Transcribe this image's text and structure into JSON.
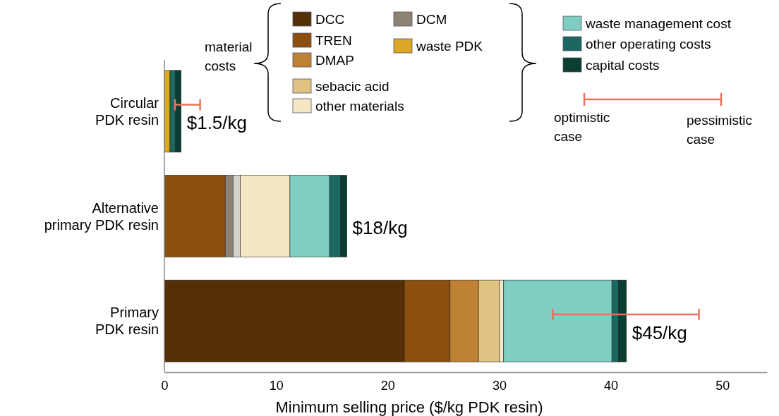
{
  "chart_data": {
    "type": "bar",
    "orientation": "horizontal",
    "stacked": true,
    "xlabel": "Minimum selling price ($/kg PDK resin)",
    "categories": [
      "Circular\nPDK resin",
      "Alternative\nprimary PDK resin",
      "Primary\nPDK resin"
    ],
    "series": [
      {
        "name": "DCC",
        "color": "#552f06",
        "values": [
          0,
          0,
          21.5
        ]
      },
      {
        "name": "TREN",
        "color": "#8b4f0e",
        "values": [
          0,
          5.45,
          4.1
        ]
      },
      {
        "name": "DMAP",
        "color": "#bf8133",
        "values": [
          0,
          0,
          2.55
        ]
      },
      {
        "name": "DCM",
        "color": "#8c8375",
        "values": [
          0,
          0.7,
          0
        ]
      },
      {
        "color": "#d6d3ce",
        "values": [
          0,
          0.65,
          0
        ]
      },
      {
        "name": "sebacic acid",
        "color": "#e0c382",
        "values": [
          0,
          0,
          1.85
        ]
      },
      {
        "name": "other materials",
        "color": "#f5e7c3",
        "values": [
          0,
          4.45,
          0.4
        ]
      },
      {
        "name": "waste PDK",
        "color": "#dca723",
        "values": [
          0.5,
          0,
          0
        ]
      },
      {
        "name": "waste management cost",
        "color": "#80cdc1",
        "values": [
          0,
          3.55,
          9.7
        ]
      },
      {
        "name": "other operating costs",
        "color": "#1c675f",
        "values": [
          0.5,
          1.0,
          0.6
        ]
      },
      {
        "name": "capital costs",
        "color": "#0b3d32",
        "values": [
          0.5,
          0.55,
          0.7
        ],
        "errors": [
          [
            0.95,
            3.2
          ],
          null,
          [
            34.8,
            47.9
          ]
        ]
      }
    ],
    "totals": [
      "$1.5/kg",
      "$18/kg",
      "$45/kg"
    ],
    "xlim": [
      0,
      54
    ],
    "xticks": [
      0,
      10,
      20,
      30,
      40,
      50
    ],
    "tick_labels": "x",
    "grid": false,
    "legend": "top",
    "annotations": [
      "material\ncosts",
      "optimistic\ncase",
      "pessimistic\ncase"
    ]
  }
}
